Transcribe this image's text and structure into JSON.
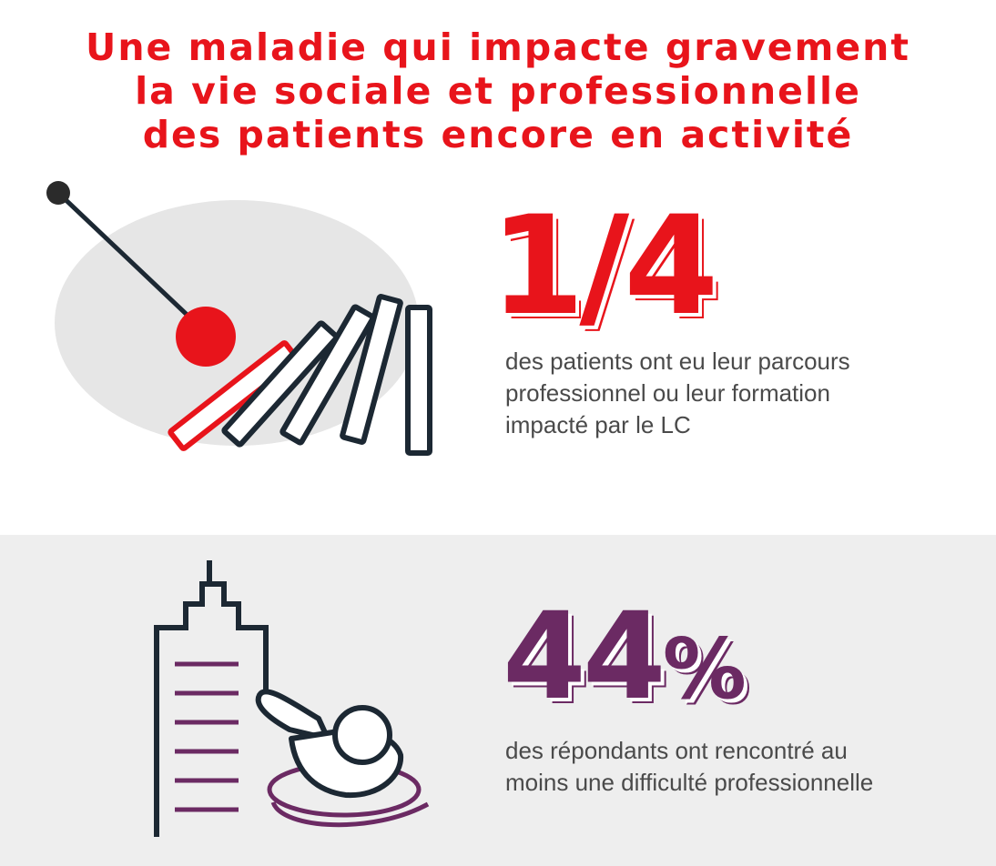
{
  "title": {
    "line1": "Une maladie qui impacte gravement",
    "line2": "la vie sociale et professionnelle",
    "line3": "des patients encore en activité"
  },
  "stat_professional": {
    "value": "1/4",
    "description": [
      "des patients ont eu leur parcours",
      "professionnel ou leur formation",
      "impacté par le LC"
    ]
  },
  "stat_difficulty": {
    "number": "44",
    "unit": "%",
    "description": [
      "des répondants ont rencontré au",
      "moins une difficulté professionnelle"
    ]
  },
  "illustrations": {
    "top": "domino-pendulum-icon",
    "bottom": "person-sinking-by-building-icon"
  },
  "colors": {
    "accent_red": "#e8141b",
    "accent_purple": "#6b2a63",
    "dark": "#1c2833",
    "text": "#4a4a4a",
    "panel_bg": "#eeeeee",
    "blob_bg": "#e6e6e6"
  }
}
